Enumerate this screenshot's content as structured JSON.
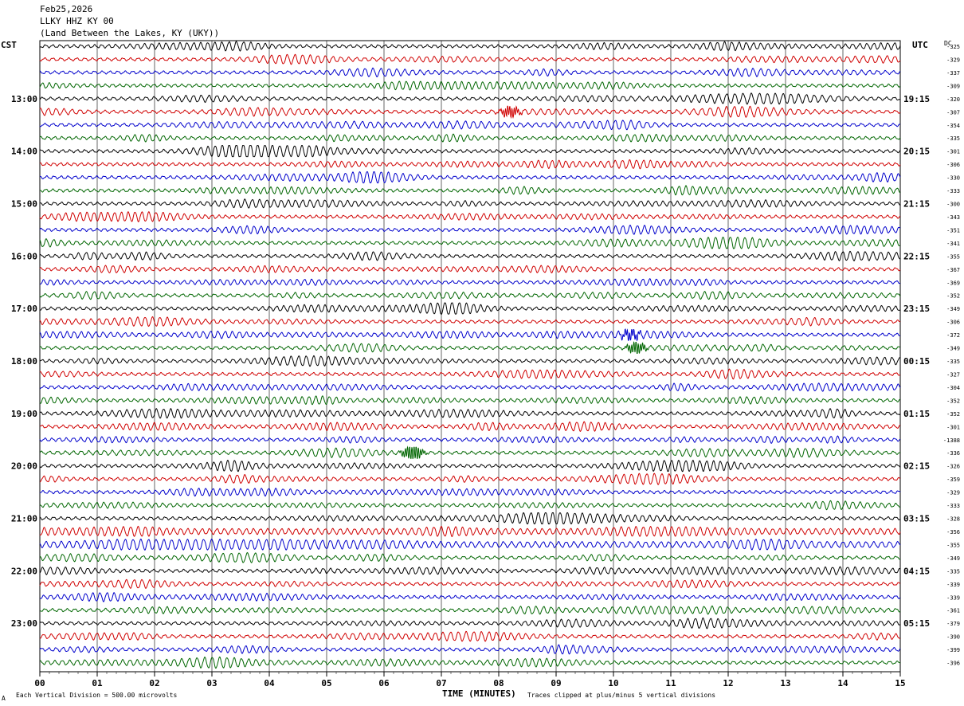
{
  "header": {
    "date": "Feb25,2026",
    "station": "LLKY HHZ KY 00",
    "location": "(Land Between the Lakes, KY (UKY))"
  },
  "left_timezone": "CST",
  "right_timezone": "UTC",
  "dc_label": "DC",
  "footer": {
    "left_note": "Each Vertical Division =  500.00 microvolts",
    "xlabel": "TIME (MINUTES)",
    "right_note": "Traces clipped at plus/minus 5 vertical divisions"
  },
  "corner_mark": "A",
  "colors": {
    "trace_cycle": [
      "#000000",
      "#d00000",
      "#0000cc",
      "#006600"
    ],
    "grid": "#000000"
  },
  "chart_data": {
    "type": "line",
    "title": "LLKY HHZ KY 00",
    "xlabel": "TIME (MINUTES)",
    "x_ticks": [
      "00",
      "01",
      "02",
      "03",
      "04",
      "05",
      "06",
      "07",
      "08",
      "09",
      "10",
      "11",
      "12",
      "13",
      "14",
      "15"
    ],
    "xlim": [
      0,
      15
    ],
    "minutes_per_line": 15,
    "left_hour_labels": [
      "13:00",
      "14:00",
      "15:00",
      "16:00",
      "17:00",
      "18:00",
      "19:00",
      "20:00",
      "21:00",
      "22:00",
      "23:00"
    ],
    "right_hour_labels": [
      "19:15",
      "20:15",
      "21:15",
      "22:15",
      "23:15",
      "00:15",
      "01:15",
      "02:15",
      "03:15",
      "04:15",
      "05:15"
    ],
    "dc_offsets": [
      "-325",
      "-329",
      "-337",
      "-309",
      "-320",
      "-307",
      "-354",
      "-335",
      "-301",
      "-306",
      "-330",
      "-333",
      "-300",
      "-343",
      "-351",
      "-341",
      "-355",
      "-367",
      "-369",
      "-352",
      "-349",
      "-306",
      "-372",
      "-349",
      "-335",
      "-327",
      "-304",
      "-352",
      "-352",
      "-301",
      "-1388",
      "-336",
      "-326",
      "-359",
      "-329",
      "-333",
      "-328",
      "-356",
      "-355",
      "-349",
      "-335",
      "-339",
      "-339",
      "-361",
      "-379",
      "-390",
      "-399",
      "-396"
    ],
    "events": [
      {
        "line": 5,
        "minute": 8.2,
        "amplitude": 1.3
      },
      {
        "line": 22,
        "minute": 10.3,
        "amplitude": 1.2
      },
      {
        "line": 23,
        "minute": 10.4,
        "amplitude": 1.4
      },
      {
        "line": 31,
        "minute": 6.5,
        "amplitude": 2.2
      }
    ],
    "noisy_lines": [
      37,
      38
    ],
    "grid": true
  }
}
